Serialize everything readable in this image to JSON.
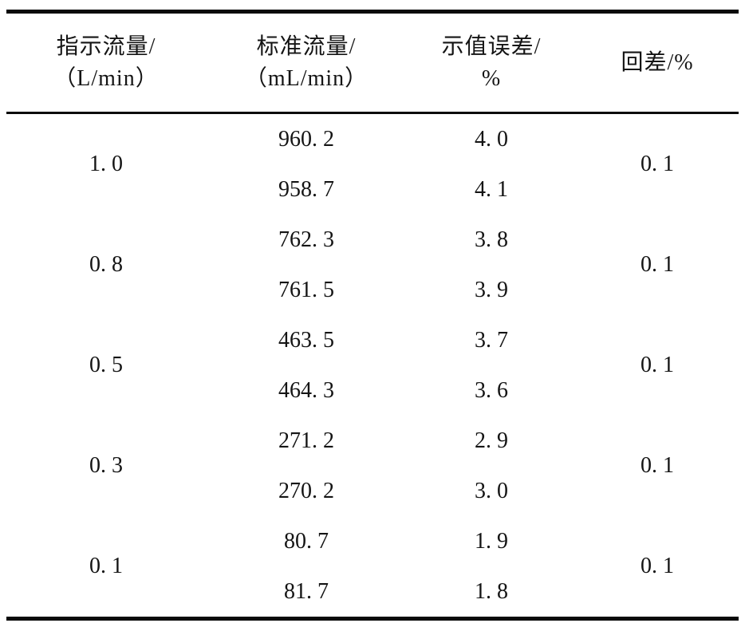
{
  "table": {
    "headers": [
      {
        "lines": [
          "指示流量/",
          "（L/min）"
        ]
      },
      {
        "lines": [
          "标准流量/",
          "（mL/min）"
        ]
      },
      {
        "lines": [
          "示值误差/",
          "%"
        ]
      },
      {
        "lines": [
          "回差/%"
        ]
      }
    ],
    "rows": [
      {
        "indicated": "1. 0",
        "standard": [
          "960. 2",
          "958. 7"
        ],
        "error": [
          "4. 0",
          "4. 1"
        ],
        "hysteresis": "0. 1"
      },
      {
        "indicated": "0. 8",
        "standard": [
          "762. 3",
          "761. 5"
        ],
        "error": [
          "3. 8",
          "3. 9"
        ],
        "hysteresis": "0. 1"
      },
      {
        "indicated": "0. 5",
        "standard": [
          "463. 5",
          "464. 3"
        ],
        "error": [
          "3. 7",
          "3. 6"
        ],
        "hysteresis": "0. 1"
      },
      {
        "indicated": "0. 3",
        "standard": [
          "271. 2",
          "270. 2"
        ],
        "error": [
          "2. 9",
          "3. 0"
        ],
        "hysteresis": "0. 1"
      },
      {
        "indicated": "0. 1",
        "standard": [
          "80. 7",
          "81. 7"
        ],
        "error": [
          "1. 9",
          "1. 8"
        ],
        "hysteresis": "0. 1"
      }
    ]
  }
}
